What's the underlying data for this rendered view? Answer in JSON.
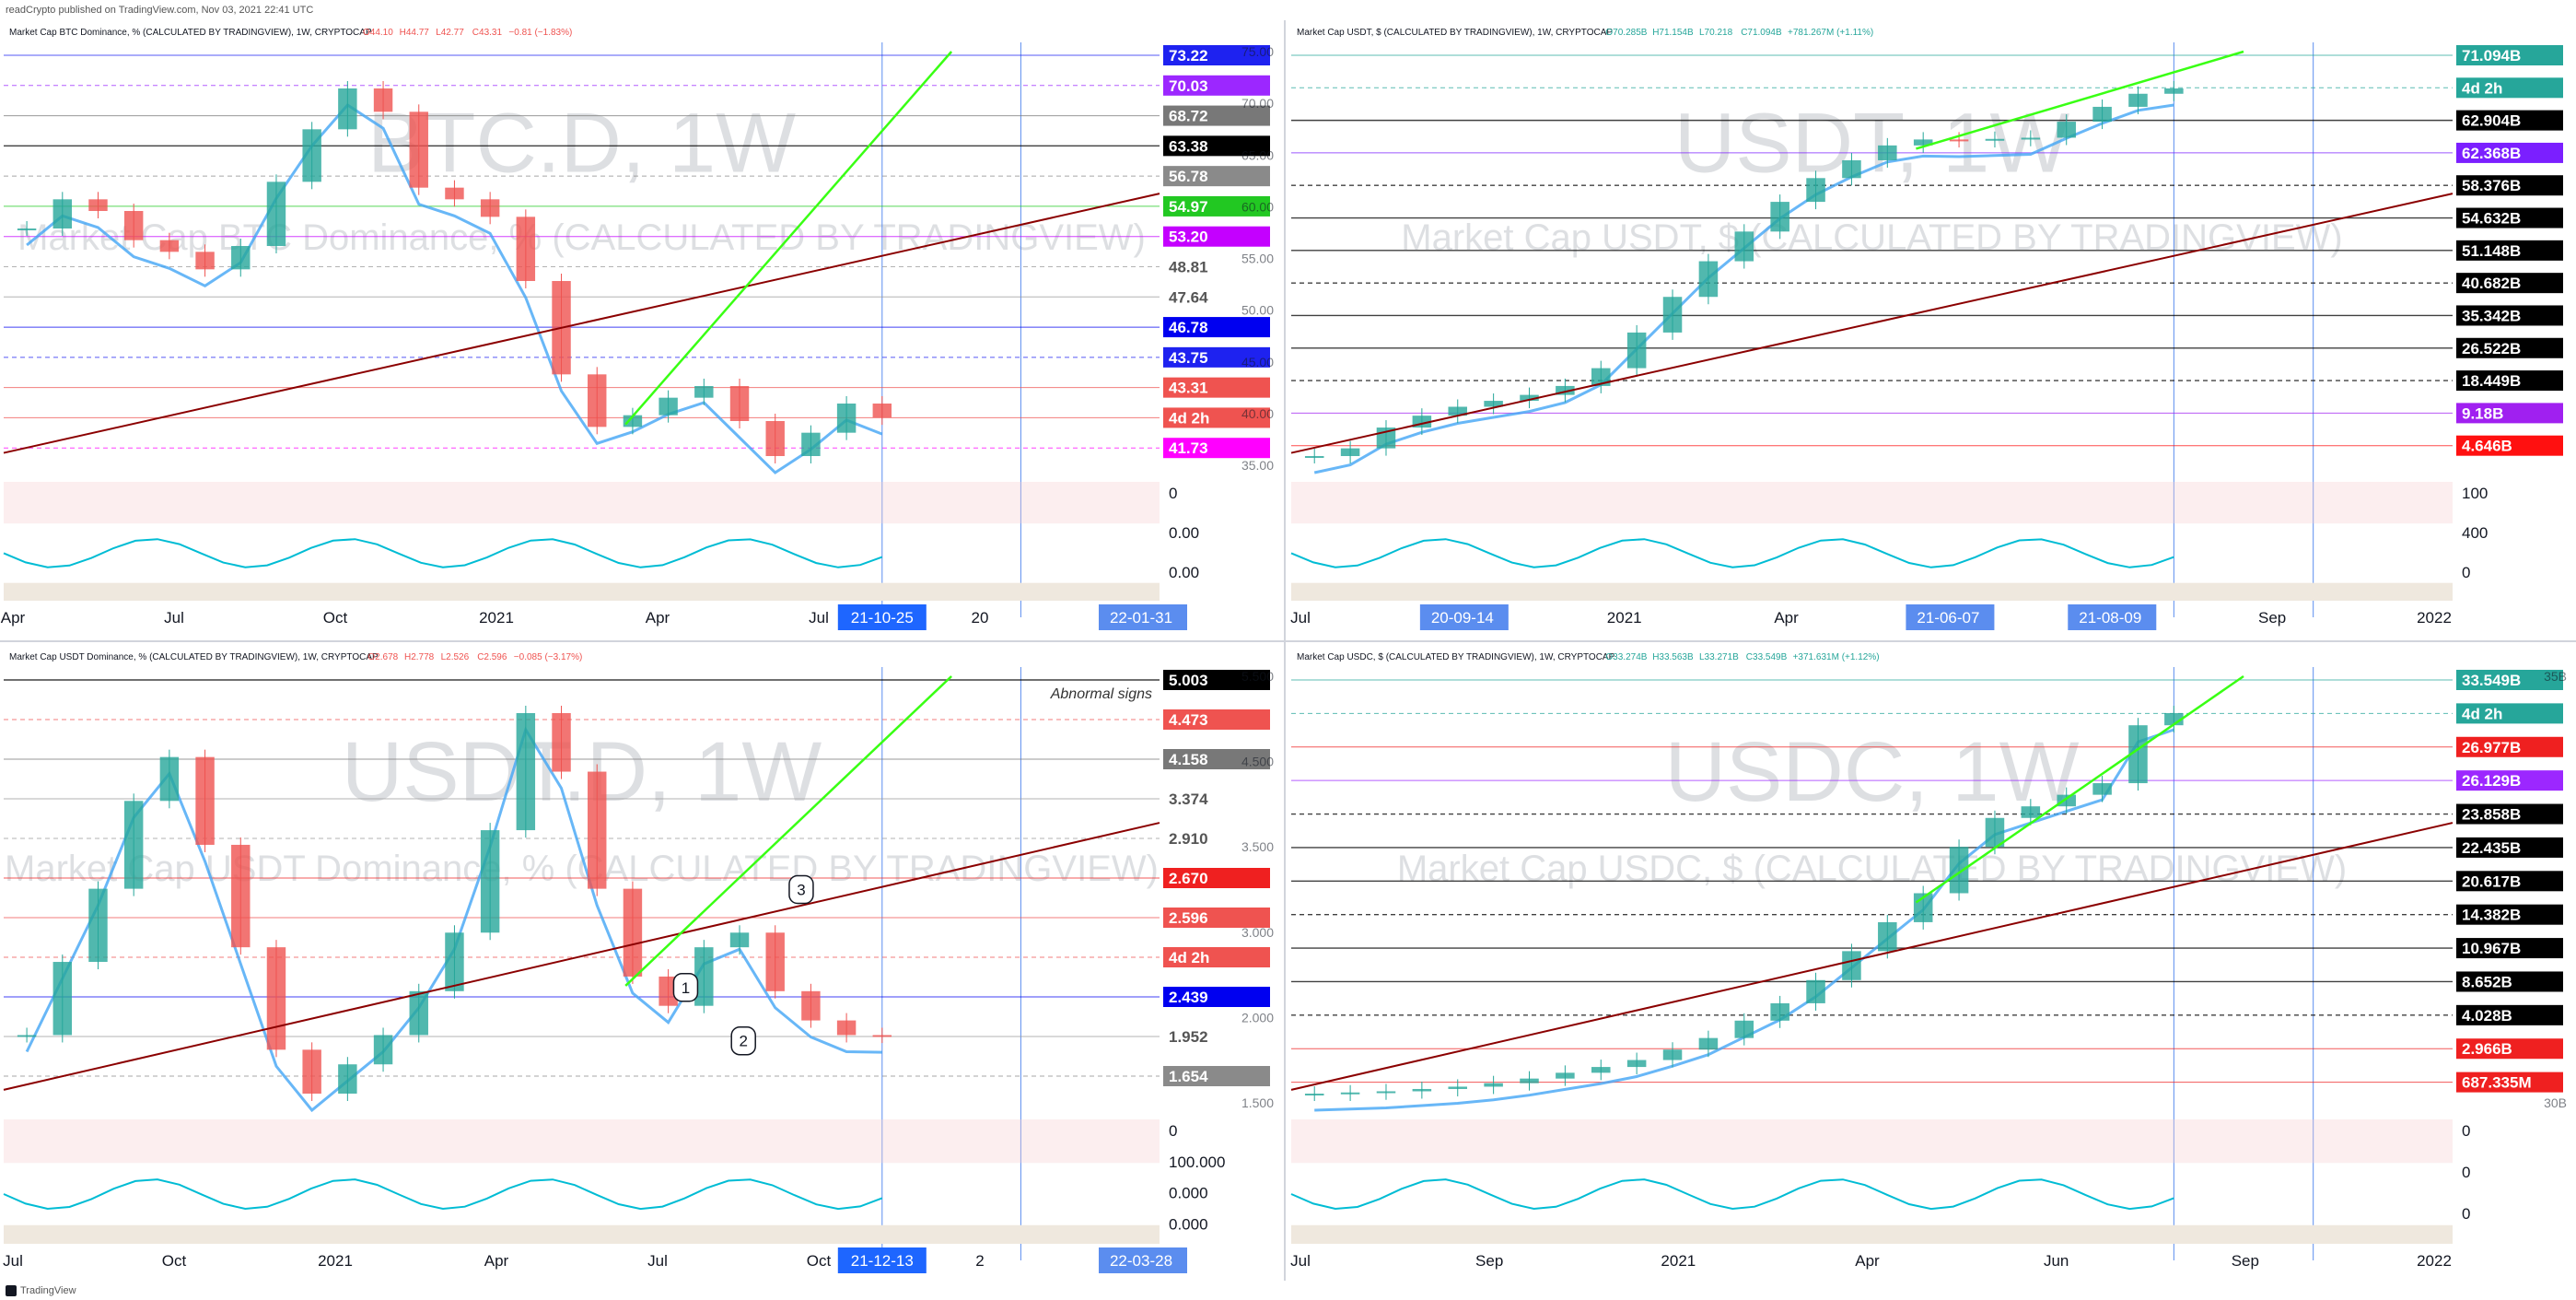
{
  "header": {
    "published_by": "readCrypto published on TradingView.com, Nov 03, 2021 22:41 UTC"
  },
  "footer": {
    "brand": "TradingView"
  },
  "chart_data": [
    {
      "type": "line",
      "title": "Market Cap BTC Dominance, % (CALCULATED BY TRADINGVIEW), 1W, CRYPTOCAP",
      "legend_values": [
        "O44.10",
        "H44.77",
        "L42.77",
        "C43.31",
        "−0.81 (−1.83%)"
      ],
      "watermark": "BTC.D, 1W",
      "watermark_sub": "Market Cap BTC Dominance, % (CALCULATED BY TRADINGVIEW)",
      "y_ticks": [
        "75.00",
        "70.00",
        "65.00",
        "60.00",
        "55.00",
        "50.00",
        "45.00",
        "40.00",
        "35.00"
      ],
      "x_ticks": [
        "Apr",
        "Jul",
        "Oct",
        "2021",
        "Apr",
        "Jul",
        "20",
        "22-01-31"
      ],
      "x_highlight": "21-10-25",
      "price_labels": [
        {
          "text": "73.22",
          "bg": "#1e22f0",
          "fg": "#ffffff"
        },
        {
          "text": "70.03",
          "bg": "#9c27ff",
          "fg": "#ffffff"
        },
        {
          "text": "68.72",
          "bg": "#787878",
          "fg": "#ffffff"
        },
        {
          "text": "63.38",
          "bg": "#000000",
          "fg": "#ffffff"
        },
        {
          "text": "56.78",
          "bg": "#8a8a8a",
          "fg": "#ffffff"
        },
        {
          "text": "54.97",
          "bg": "#22c822",
          "fg": "#ffffff"
        },
        {
          "text": "53.20",
          "bg": "#c400ff",
          "fg": "#ffffff"
        },
        {
          "text": "48.81",
          "bg": "none",
          "fg": "#555555"
        },
        {
          "text": "47.64",
          "bg": "none",
          "fg": "#555555"
        },
        {
          "text": "46.78",
          "bg": "#0000f0",
          "fg": "#ffffff"
        },
        {
          "text": "43.75",
          "bg": "#1e22f0",
          "fg": "#ffffff"
        },
        {
          "text": "43.31",
          "bg": "#ef5350",
          "fg": "#ffffff"
        },
        {
          "text": "4d 2h",
          "bg": "#ef5350",
          "fg": "#ffffff"
        },
        {
          "text": "41.73",
          "bg": "#ff00ff",
          "fg": "#ffffff"
        }
      ],
      "indicator_ticks": [
        "0",
        "0.00",
        "0.00"
      ],
      "series": [
        {
          "values": [
            59.5,
            62.0,
            61.0,
            58.5,
            57.5,
            56.0,
            58.0,
            63.5,
            68.0,
            71.5,
            69.5,
            63.0,
            62.0,
            60.5,
            55.0,
            47.0,
            42.5,
            43.5,
            45.0,
            46.0,
            43.0,
            40.0,
            42.0,
            44.5,
            43.31
          ]
        }
      ]
    },
    {
      "type": "line",
      "title": "Market Cap USDT, $ (CALCULATED BY TRADINGVIEW), 1W, CRYPTOCAP",
      "legend_values": [
        "O70.285B",
        "H71.154B",
        "L70.218",
        "C71.094B",
        "+781.267M (+1.11%)"
      ],
      "watermark": "USDT, 1W",
      "watermark_sub": "Market Cap USDT, $ (CALCULATED BY TRADINGVIEW)",
      "x_ticks": [
        "Jul",
        "20-09-14",
        "2021",
        "Apr",
        "21-06-07",
        "21-08-09",
        "Sep",
        "2022"
      ],
      "price_labels": [
        {
          "text": "71.094B",
          "bg": "#26a69a",
          "fg": "#ffffff"
        },
        {
          "text": "4d 2h",
          "bg": "#26a69a",
          "fg": "#ffffff"
        },
        {
          "text": "62.904B",
          "bg": "#000000",
          "fg": "#ffffff"
        },
        {
          "text": "62.368B",
          "bg": "#7b1fff",
          "fg": "#ffffff"
        },
        {
          "text": "58.376B",
          "bg": "#000000",
          "fg": "#ffffff"
        },
        {
          "text": "54.632B",
          "bg": "#000000",
          "fg": "#ffffff"
        },
        {
          "text": "51.148B",
          "bg": "#000000",
          "fg": "#ffffff"
        },
        {
          "text": "40.682B",
          "bg": "#000000",
          "fg": "#ffffff"
        },
        {
          "text": "35.342B",
          "bg": "#000000",
          "fg": "#ffffff"
        },
        {
          "text": "26.522B",
          "bg": "#000000",
          "fg": "#ffffff"
        },
        {
          "text": "18.449B",
          "bg": "#000000",
          "fg": "#ffffff"
        },
        {
          "text": "9.18B",
          "bg": "#a020f0",
          "fg": "#ffffff"
        },
        {
          "text": "4.646B",
          "bg": "#ff1010",
          "fg": "#ffffff"
        }
      ],
      "indicator_ticks": [
        "100",
        "400",
        "0"
      ],
      "series": [
        {
          "values": [
            9.2,
            10.5,
            14.0,
            16.0,
            17.5,
            18.5,
            19.5,
            21.0,
            24.0,
            30.0,
            36.0,
            42.0,
            47.0,
            52.0,
            56.0,
            59.0,
            61.5,
            62.5,
            62.4,
            62.6,
            62.8,
            65.5,
            68.0,
            70.2,
            71.094
          ]
        }
      ]
    },
    {
      "type": "line",
      "title": "Market Cap USDT Dominance, % (CALCULATED BY TRADINGVIEW), 1W, CRYPTOCAP",
      "legend_values": [
        "O2.678",
        "H2.778",
        "L2.526",
        "C2.596",
        "−0.085 (−3.17%)"
      ],
      "watermark": "USDT.D, 1W",
      "watermark_sub": "Market Cap USDT Dominance, % (CALCULATED BY TRADINGVIEW)",
      "y_ticks": [
        "5.500",
        "4.500",
        "3.500",
        "3.000",
        "2.000",
        "1.500"
      ],
      "x_ticks": [
        "Jul",
        "Oct",
        "2021",
        "Apr",
        "Jul",
        "Oct",
        "2",
        "22-03-28"
      ],
      "x_highlight": "21-12-13",
      "annotation": "Abnormal signs",
      "price_labels": [
        {
          "text": "5.003",
          "bg": "#000000",
          "fg": "#ffffff"
        },
        {
          "text": "4.473",
          "bg": "#ef5350",
          "fg": "#ffffff"
        },
        {
          "text": "4.158",
          "bg": "#787878",
          "fg": "#ffffff"
        },
        {
          "text": "3.374",
          "bg": "none",
          "fg": "#555555"
        },
        {
          "text": "2.910",
          "bg": "none",
          "fg": "#555555"
        },
        {
          "text": "2.670",
          "bg": "#ef2020",
          "fg": "#ffffff"
        },
        {
          "text": "2.596",
          "bg": "#ef5350",
          "fg": "#ffffff"
        },
        {
          "text": "4d 2h",
          "bg": "#ef5350",
          "fg": "#ffffff"
        },
        {
          "text": "2.439",
          "bg": "#0000f0",
          "fg": "#ffffff"
        },
        {
          "text": "1.952",
          "bg": "none",
          "fg": "#555555"
        },
        {
          "text": "1.654",
          "bg": "#8a8a8a",
          "fg": "#ffffff"
        }
      ],
      "callouts": [
        "1",
        "2",
        "3"
      ],
      "indicator_ticks": [
        "0",
        "100.000",
        "0.000",
        "0.000"
      ],
      "series": [
        {
          "values": [
            2.6,
            3.1,
            3.6,
            4.2,
            4.5,
            3.9,
            3.2,
            2.5,
            2.2,
            2.4,
            2.6,
            2.9,
            3.3,
            4.0,
            4.8,
            4.4,
            3.6,
            3.0,
            2.8,
            3.2,
            3.3,
            2.9,
            2.7,
            2.6,
            2.596
          ]
        }
      ]
    },
    {
      "type": "line",
      "title": "Market Cap USDC, $ (CALCULATED BY TRADINGVIEW), 1W, CRYPTOCAP",
      "legend_values": [
        "O33.274B",
        "H33.563B",
        "L33.271B",
        "C33.549B",
        "+371.631M (+1.12%)"
      ],
      "watermark": "USDC, 1W",
      "watermark_sub": "Market Cap USDC, $ (CALCULATED BY TRADINGVIEW)",
      "y_ticks": [
        "35B",
        "30B"
      ],
      "x_ticks": [
        "Jul",
        "Sep",
        "2021",
        "Apr",
        "Jun",
        "Sep",
        "2022"
      ],
      "price_labels": [
        {
          "text": "33.549B",
          "bg": "#26a69a",
          "fg": "#ffffff"
        },
        {
          "text": "4d 2h",
          "bg": "#26a69a",
          "fg": "#ffffff"
        },
        {
          "text": "26.977B",
          "bg": "#ef2020",
          "fg": "#ffffff"
        },
        {
          "text": "26.129B",
          "bg": "#9c27ff",
          "fg": "#ffffff"
        },
        {
          "text": "23.858B",
          "bg": "#000000",
          "fg": "#ffffff"
        },
        {
          "text": "22.435B",
          "bg": "#000000",
          "fg": "#ffffff"
        },
        {
          "text": "20.617B",
          "bg": "#000000",
          "fg": "#ffffff"
        },
        {
          "text": "14.382B",
          "bg": "#000000",
          "fg": "#ffffff"
        },
        {
          "text": "10.967B",
          "bg": "#000000",
          "fg": "#ffffff"
        },
        {
          "text": "8.652B",
          "bg": "#000000",
          "fg": "#ffffff"
        },
        {
          "text": "4.028B",
          "bg": "#000000",
          "fg": "#ffffff"
        },
        {
          "text": "2.966B",
          "bg": "#ef2020",
          "fg": "#ffffff"
        },
        {
          "text": "687.335M",
          "bg": "#ef2020",
          "fg": "#ffffff"
        }
      ],
      "indicator_ticks": [
        "0",
        "0",
        "0"
      ],
      "series": [
        {
          "values": [
            0.7,
            0.8,
            0.9,
            1.1,
            1.3,
            1.6,
            2.0,
            2.5,
            3.0,
            3.6,
            4.5,
            5.5,
            7.0,
            8.5,
            10.5,
            13.0,
            15.5,
            18.0,
            22.0,
            24.5,
            25.5,
            26.5,
            27.5,
            32.5,
            33.549
          ]
        }
      ]
    }
  ]
}
